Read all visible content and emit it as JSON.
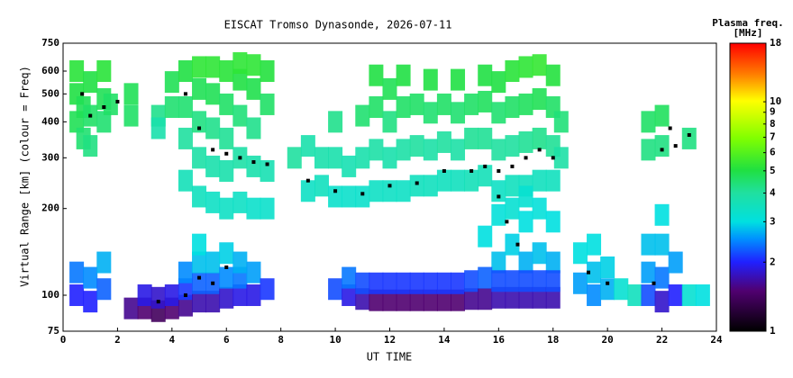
{
  "chart_data": {
    "type": "scatter",
    "title": "EISCAT Tromso Dynasonde, 2026-07-11",
    "xlabel": "UT TIME",
    "ylabel": "Virtual Range [km] (colour = Freq)",
    "colorbar_title": [
      "Plasma freq.",
      "[MHz]"
    ],
    "xlim": [
      0,
      24
    ],
    "xticks": [
      0,
      2,
      4,
      6,
      8,
      10,
      12,
      14,
      16,
      18,
      20,
      22,
      24
    ],
    "ylim": [
      75,
      750
    ],
    "yticks": [
      75,
      100,
      200,
      300,
      400,
      500,
      600,
      750
    ],
    "ylog": true,
    "clim": [
      1,
      18
    ],
    "cticks": [
      1,
      2,
      3,
      4,
      5,
      6,
      7,
      8,
      9,
      10,
      18
    ],
    "clog": true,
    "trace_color": "#000000",
    "points": [
      [
        0.5,
        400,
        4.8
      ],
      [
        0.5,
        500,
        5
      ],
      [
        0.5,
        600,
        5.2
      ],
      [
        0.75,
        350,
        4.5
      ],
      [
        0.75,
        450,
        4.8
      ],
      [
        1.0,
        330,
        4.3
      ],
      [
        1.0,
        420,
        4.6
      ],
      [
        1.0,
        550,
        5
      ],
      [
        1.5,
        400,
        4.5
      ],
      [
        1.5,
        480,
        4.8
      ],
      [
        1.5,
        600,
        5.2
      ],
      [
        1.75,
        460,
        4.6
      ],
      [
        2.5,
        420,
        4.6
      ],
      [
        2.5,
        500,
        4.8
      ],
      [
        3.5,
        420,
        4.2
      ],
      [
        3.5,
        380,
        3.8
      ],
      [
        4.0,
        450,
        4.5
      ],
      [
        4.0,
        550,
        4.8
      ],
      [
        4.5,
        250,
        3.6
      ],
      [
        4.5,
        350,
        4
      ],
      [
        4.5,
        450,
        4.5
      ],
      [
        4.5,
        600,
        5
      ],
      [
        5.0,
        220,
        3.5
      ],
      [
        5.0,
        300,
        3.9
      ],
      [
        5.0,
        400,
        4.3
      ],
      [
        5.0,
        520,
        4.8
      ],
      [
        5.0,
        620,
        5.3
      ],
      [
        5.5,
        210,
        3.4
      ],
      [
        5.5,
        280,
        3.8
      ],
      [
        5.5,
        380,
        4.2
      ],
      [
        5.5,
        500,
        4.8
      ],
      [
        5.5,
        620,
        5.3
      ],
      [
        6.0,
        200,
        3.4
      ],
      [
        6.0,
        270,
        3.8
      ],
      [
        6.0,
        350,
        4.1
      ],
      [
        6.0,
        460,
        4.6
      ],
      [
        6.0,
        600,
        5.2
      ],
      [
        6.5,
        210,
        3.4
      ],
      [
        6.5,
        300,
        3.9
      ],
      [
        6.5,
        420,
        4.4
      ],
      [
        6.5,
        560,
        5
      ],
      [
        6.5,
        640,
        5.3
      ],
      [
        7.0,
        200,
        3.3
      ],
      [
        7.0,
        280,
        3.8
      ],
      [
        7.0,
        380,
        4.2
      ],
      [
        7.0,
        520,
        4.9
      ],
      [
        7.0,
        630,
        5.3
      ],
      [
        7.5,
        200,
        3.3
      ],
      [
        7.5,
        270,
        3.7
      ],
      [
        7.5,
        460,
        4.6
      ],
      [
        7.5,
        600,
        5.1
      ],
      [
        8.5,
        300,
        4
      ],
      [
        9.0,
        230,
        3.4
      ],
      [
        9.0,
        330,
        3.8
      ],
      [
        9.5,
        240,
        3.5
      ],
      [
        9.5,
        300,
        3.8
      ],
      [
        10.0,
        220,
        3.3
      ],
      [
        10.0,
        300,
        3.8
      ],
      [
        10.0,
        400,
        4.2
      ],
      [
        10.5,
        220,
        3.3
      ],
      [
        10.5,
        280,
        3.7
      ],
      [
        11.0,
        220,
        3.3
      ],
      [
        11.0,
        300,
        3.8
      ],
      [
        11.0,
        420,
        4.5
      ],
      [
        11.5,
        230,
        3.4
      ],
      [
        11.5,
        320,
        3.9
      ],
      [
        11.5,
        450,
        4.6
      ],
      [
        11.5,
        580,
        5
      ],
      [
        12.0,
        230,
        3.4
      ],
      [
        12.0,
        300,
        3.8
      ],
      [
        12.0,
        400,
        4.3
      ],
      [
        12.0,
        520,
        4.8
      ],
      [
        12.5,
        230,
        3.4
      ],
      [
        12.5,
        320,
        3.9
      ],
      [
        12.5,
        450,
        4.6
      ],
      [
        12.5,
        580,
        5
      ],
      [
        13.0,
        240,
        3.5
      ],
      [
        13.0,
        330,
        4
      ],
      [
        13.0,
        460,
        4.6
      ],
      [
        13.5,
        240,
        3.5
      ],
      [
        13.5,
        320,
        3.9
      ],
      [
        13.5,
        430,
        4.5
      ],
      [
        13.5,
        560,
        5
      ],
      [
        14.0,
        250,
        3.5
      ],
      [
        14.0,
        340,
        4
      ],
      [
        14.0,
        460,
        4.6
      ],
      [
        14.5,
        250,
        3.5
      ],
      [
        14.5,
        320,
        3.9
      ],
      [
        14.5,
        430,
        4.5
      ],
      [
        14.5,
        560,
        5
      ],
      [
        15.0,
        250,
        3.6
      ],
      [
        15.0,
        350,
        4.1
      ],
      [
        15.0,
        460,
        4.6
      ],
      [
        15.5,
        260,
        3.6
      ],
      [
        15.5,
        350,
        4.1
      ],
      [
        15.5,
        470,
        4.7
      ],
      [
        15.5,
        580,
        5
      ],
      [
        16.0,
        230,
        3.4
      ],
      [
        16.0,
        320,
        4
      ],
      [
        16.0,
        430,
        4.5
      ],
      [
        16.0,
        550,
        5
      ],
      [
        16.5,
        240,
        3.5
      ],
      [
        16.5,
        330,
        4
      ],
      [
        16.5,
        450,
        4.6
      ],
      [
        16.5,
        600,
        5.2
      ],
      [
        17.0,
        240,
        3.5
      ],
      [
        17.0,
        340,
        4.1
      ],
      [
        17.0,
        460,
        4.7
      ],
      [
        17.0,
        620,
        5.3
      ],
      [
        17.5,
        250,
        3.5
      ],
      [
        17.5,
        350,
        4.2
      ],
      [
        17.5,
        480,
        4.8
      ],
      [
        17.5,
        630,
        5.4
      ],
      [
        18.0,
        250,
        3.5
      ],
      [
        18.0,
        330,
        4.1
      ],
      [
        18.0,
        450,
        4.6
      ],
      [
        18.0,
        580,
        5.1
      ],
      [
        18.3,
        300,
        3.9
      ],
      [
        18.3,
        400,
        4.4
      ],
      [
        15.5,
        160,
        3
      ],
      [
        16.0,
        130,
        2.8
      ],
      [
        16.0,
        190,
        3.1
      ],
      [
        16.5,
        150,
        2.9
      ],
      [
        16.5,
        200,
        3.2
      ],
      [
        17.0,
        130,
        2.7
      ],
      [
        17.0,
        180,
        3
      ],
      [
        17.0,
        220,
        3.2
      ],
      [
        17.5,
        140,
        2.8
      ],
      [
        17.5,
        200,
        3.1
      ],
      [
        18.0,
        130,
        2.7
      ],
      [
        18.0,
        180,
        3
      ],
      [
        0.5,
        100,
        2
      ],
      [
        0.5,
        120,
        2.4
      ],
      [
        1.0,
        95,
        2
      ],
      [
        1.0,
        115,
        2.5
      ],
      [
        1.5,
        105,
        2.3
      ],
      [
        1.5,
        130,
        2.7
      ],
      [
        2.5,
        90,
        1.6
      ],
      [
        3.0,
        90,
        1.5
      ],
      [
        3.0,
        100,
        1.9
      ],
      [
        3.5,
        88,
        1.4
      ],
      [
        3.5,
        98,
        1.8
      ],
      [
        4.0,
        90,
        1.5
      ],
      [
        4.0,
        100,
        1.9
      ],
      [
        4.5,
        92,
        1.6
      ],
      [
        4.5,
        105,
        2.1
      ],
      [
        4.5,
        120,
        2.5
      ],
      [
        5.0,
        95,
        1.7
      ],
      [
        5.0,
        110,
        2.3
      ],
      [
        5.0,
        130,
        2.8
      ],
      [
        5.0,
        150,
        3
      ],
      [
        5.5,
        95,
        1.7
      ],
      [
        5.5,
        110,
        2.3
      ],
      [
        5.5,
        130,
        2.8
      ],
      [
        6.0,
        98,
        1.8
      ],
      [
        6.0,
        115,
        2.5
      ],
      [
        6.0,
        140,
        2.9
      ],
      [
        6.5,
        100,
        1.9
      ],
      [
        6.5,
        115,
        2.4
      ],
      [
        6.5,
        130,
        2.7
      ],
      [
        7.0,
        100,
        1.9
      ],
      [
        7.0,
        120,
        2.6
      ],
      [
        7.5,
        105,
        2.1
      ],
      [
        10.0,
        105,
        2.2
      ],
      [
        10.5,
        100,
        1.9
      ],
      [
        10.5,
        115,
        2.4
      ],
      [
        11.0,
        97,
        1.7
      ],
      [
        11.0,
        110,
        2.2
      ],
      [
        11.5,
        96,
        1.5
      ],
      [
        11.5,
        110,
        2.1
      ],
      [
        12.0,
        96,
        1.5
      ],
      [
        12.0,
        110,
        2.1
      ],
      [
        12.5,
        96,
        1.5
      ],
      [
        12.5,
        110,
        2.1
      ],
      [
        13.0,
        96,
        1.5
      ],
      [
        13.0,
        110,
        2.1
      ],
      [
        13.5,
        96,
        1.5
      ],
      [
        13.5,
        110,
        2.1
      ],
      [
        14.0,
        96,
        1.5
      ],
      [
        14.0,
        110,
        2.1
      ],
      [
        14.5,
        96,
        1.5
      ],
      [
        14.5,
        110,
        2.1
      ],
      [
        15.0,
        97,
        1.6
      ],
      [
        15.0,
        112,
        2.2
      ],
      [
        15.5,
        97,
        1.6
      ],
      [
        15.5,
        115,
        2.3
      ],
      [
        16.0,
        98,
        1.7
      ],
      [
        16.0,
        112,
        2.2
      ],
      [
        16.5,
        98,
        1.7
      ],
      [
        16.5,
        112,
        2.2
      ],
      [
        17.0,
        98,
        1.7
      ],
      [
        17.0,
        112,
        2.2
      ],
      [
        17.5,
        98,
        1.7
      ],
      [
        17.5,
        112,
        2.2
      ],
      [
        18.0,
        98,
        1.7
      ],
      [
        18.0,
        112,
        2.2
      ],
      [
        19.0,
        110,
        2.6
      ],
      [
        19.0,
        140,
        3
      ],
      [
        19.5,
        100,
        2.5
      ],
      [
        19.5,
        120,
        2.8
      ],
      [
        19.5,
        150,
        3
      ],
      [
        20.0,
        105,
        2.7
      ],
      [
        20.0,
        125,
        2.9
      ],
      [
        20.5,
        105,
        3.2
      ],
      [
        21.0,
        100,
        3.5
      ],
      [
        21.5,
        100,
        2.2
      ],
      [
        21.5,
        120,
        2.6
      ],
      [
        21.5,
        150,
        2.8
      ],
      [
        22.0,
        95,
        1.8
      ],
      [
        22.0,
        115,
        2.4
      ],
      [
        22.0,
        150,
        2.8
      ],
      [
        22.0,
        190,
        3
      ],
      [
        22.5,
        100,
        2
      ],
      [
        22.5,
        130,
        2.6
      ],
      [
        21.5,
        320,
        4.3
      ],
      [
        21.5,
        400,
        4.6
      ],
      [
        22.0,
        330,
        4.3
      ],
      [
        22.0,
        420,
        4.7
      ],
      [
        23.0,
        100,
        3.2
      ],
      [
        23.0,
        350,
        4.3
      ],
      [
        23.5,
        100,
        3
      ]
    ],
    "trace": [
      [
        0.7,
        500
      ],
      [
        1.0,
        420
      ],
      [
        1.5,
        450
      ],
      [
        2.0,
        470
      ],
      [
        4.5,
        500
      ],
      [
        5.0,
        380
      ],
      [
        5.5,
        320
      ],
      [
        6.0,
        310
      ],
      [
        6.5,
        300
      ],
      [
        7.0,
        290
      ],
      [
        7.5,
        285
      ],
      [
        9.0,
        250
      ],
      [
        10,
        230
      ],
      [
        11,
        225
      ],
      [
        12,
        240
      ],
      [
        13,
        245
      ],
      [
        14,
        270
      ],
      [
        15,
        270
      ],
      [
        15.5,
        280
      ],
      [
        16,
        270
      ],
      [
        16.5,
        280
      ],
      [
        17,
        300
      ],
      [
        17.5,
        320
      ],
      [
        18,
        300
      ],
      [
        16,
        220
      ],
      [
        16.3,
        180
      ],
      [
        16.7,
        150
      ],
      [
        3.5,
        95
      ],
      [
        4.5,
        100
      ],
      [
        5.0,
        115
      ],
      [
        5.5,
        110
      ],
      [
        6,
        125
      ],
      [
        19.3,
        120
      ],
      [
        20.0,
        110
      ],
      [
        21.7,
        110
      ],
      [
        22.0,
        320
      ],
      [
        22.3,
        380
      ],
      [
        22.5,
        330
      ],
      [
        23.0,
        360
      ]
    ]
  }
}
